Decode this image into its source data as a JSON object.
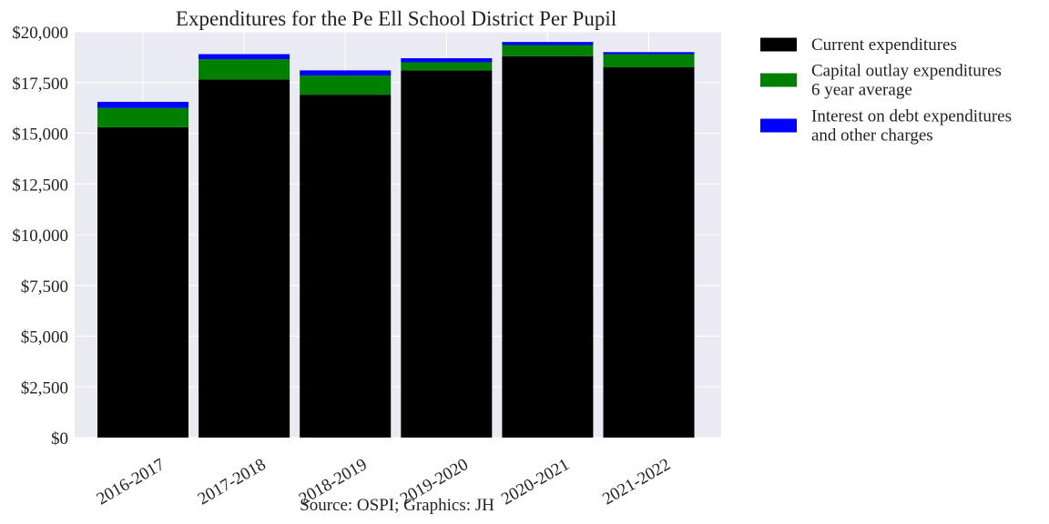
{
  "chart_data": {
    "type": "bar",
    "stacked": true,
    "title": "Expenditures for the Pe Ell School District Per Pupil",
    "caption": "Source: OSPI; Graphics: JH",
    "xlabel": "",
    "ylabel": "",
    "categories": [
      "2016-2017",
      "2017-2018",
      "2018-2019",
      "2019-2020",
      "2020-2021",
      "2021-2022"
    ],
    "ylim": [
      0,
      20000
    ],
    "yticks": [
      0,
      2500,
      5000,
      7500,
      10000,
      12500,
      15000,
      17500,
      20000
    ],
    "ytick_labels": [
      "$0",
      "$2,500",
      "$5,000",
      "$7,500",
      "$10,000",
      "$12,500",
      "$15,000",
      "$17,500",
      "$20,000"
    ],
    "grid": true,
    "legend_position": "outside-right",
    "series": [
      {
        "name": "Current expenditures",
        "legend_lines": [
          "Current expenditures"
        ],
        "color": "#000000",
        "values": [
          15300,
          17650,
          16900,
          18100,
          18800,
          18250
        ]
      },
      {
        "name": "Capital outlay expenditures 6 year average",
        "legend_lines": [
          "Capital outlay expenditures",
          "6 year average"
        ],
        "color": "#008000",
        "values": [
          950,
          1000,
          950,
          400,
          550,
          650
        ]
      },
      {
        "name": "Interest on debt expenditures and other charges",
        "legend_lines": [
          "Interest on debt expenditures",
          "and other charges"
        ],
        "color": "#0000ff",
        "values": [
          300,
          250,
          250,
          200,
          150,
          100
        ]
      }
    ]
  }
}
